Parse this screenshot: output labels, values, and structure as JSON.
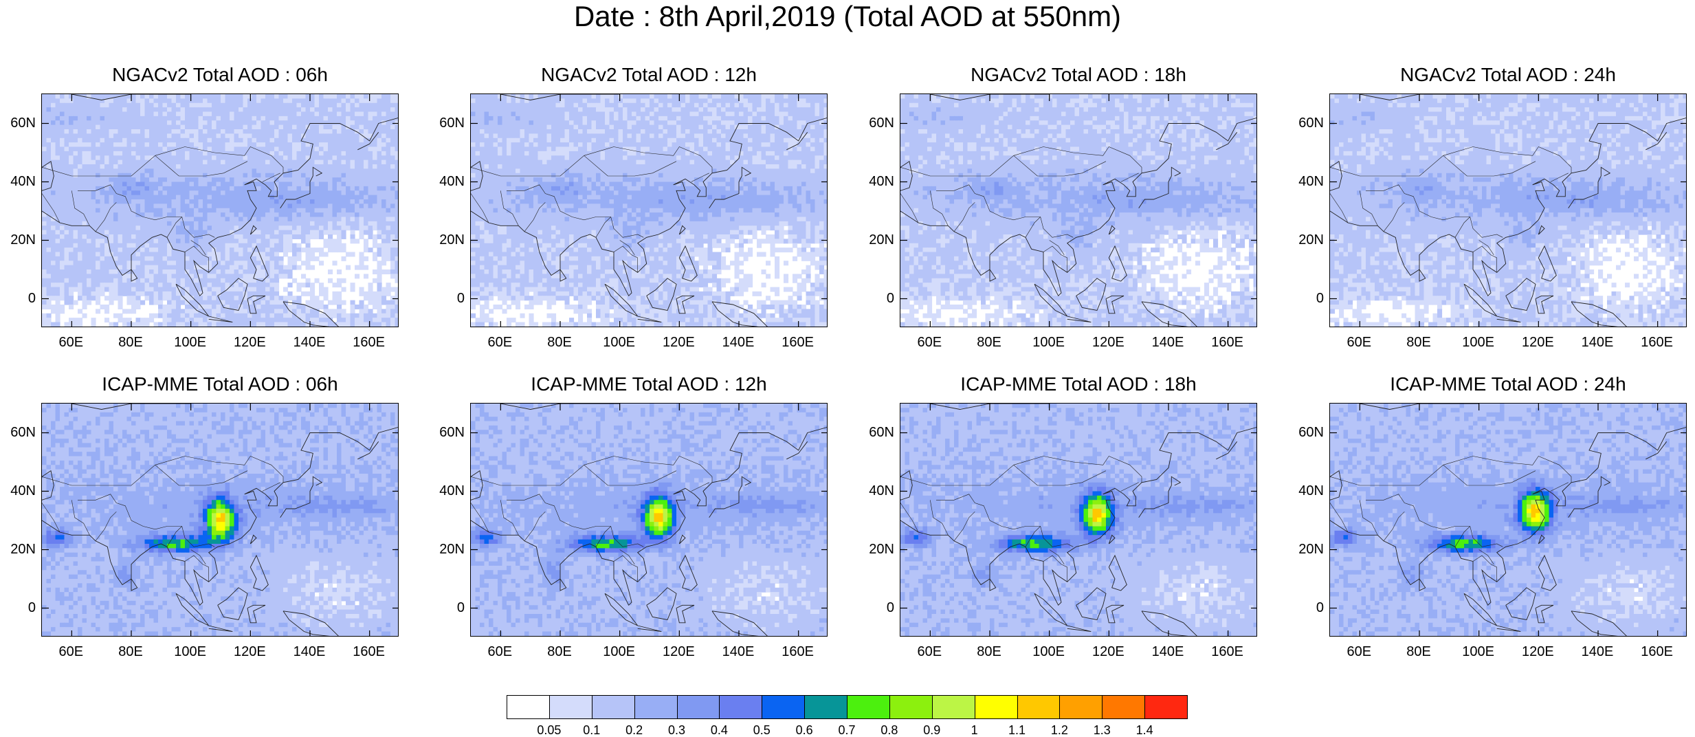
{
  "title": "Date : 8th April,2019 (Total AOD at 550nm)",
  "y_ticks": [
    "60N",
    "40N",
    "20N",
    "0"
  ],
  "x_ticks": [
    "60E",
    "80E",
    "100E",
    "120E",
    "140E",
    "160E"
  ],
  "panels": [
    {
      "title": "NGACv2 Total AOD : 06h",
      "model": "NGACv2",
      "hour": "06h"
    },
    {
      "title": "NGACv2 Total AOD : 12h",
      "model": "NGACv2",
      "hour": "12h"
    },
    {
      "title": "NGACv2 Total AOD : 18h",
      "model": "NGACv2",
      "hour": "18h"
    },
    {
      "title": "NGACv2 Total AOD : 24h",
      "model": "NGACv2",
      "hour": "24h"
    },
    {
      "title": "ICAP-MME Total AOD : 06h",
      "model": "ICAP-MME",
      "hour": "06h"
    },
    {
      "title": "ICAP-MME Total AOD : 12h",
      "model": "ICAP-MME",
      "hour": "12h"
    },
    {
      "title": "ICAP-MME Total AOD : 18h",
      "model": "ICAP-MME",
      "hour": "18h"
    },
    {
      "title": "ICAP-MME Total AOD : 24h",
      "model": "ICAP-MME",
      "hour": "24h"
    }
  ],
  "colorbar": {
    "labels": [
      "0.05",
      "0.1",
      "0.2",
      "0.3",
      "0.4",
      "0.5",
      "0.6",
      "0.7",
      "0.8",
      "0.9",
      "1",
      "1.1",
      "1.2",
      "1.3",
      "1.4"
    ],
    "colors": [
      "#ffffff",
      "#d4dcfb",
      "#b6c4f8",
      "#98aef5",
      "#8099f2",
      "#6a7ff0",
      "#0a64f2",
      "#079598",
      "#4cf00e",
      "#8cf00e",
      "#bcf545",
      "#ffff00",
      "#ffc800",
      "#ffa000",
      "#ff7800",
      "#ff2810"
    ]
  }
}
